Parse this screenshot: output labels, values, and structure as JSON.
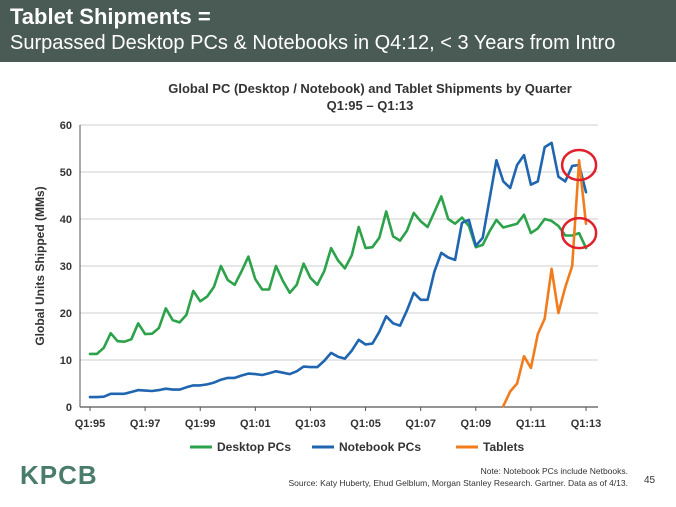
{
  "header": {
    "title": "Tablet Shipments =",
    "subtitle": "Surpassed Desktop PCs & Notebooks in Q4:12, < 3 Years from Intro"
  },
  "footer": {
    "logo": "KPCB",
    "note": "Note: Notebook PCs include Netbooks.",
    "source": "Source: Katy Huberty, Ehud Gelblum, Morgan Stanley Research. Gartner. Data as of 4/13.",
    "page_number": "45"
  },
  "colors": {
    "header_bg": "#4a5a54",
    "desktop": "#2ca24a",
    "notebook": "#1f65b0",
    "tablets": "#f07c1d",
    "highlight_circle": "#e0202a"
  },
  "chart_data": {
    "type": "line",
    "title": "Global PC (Desktop / Notebook) and Tablet Shipments by Quarter",
    "subtitle": "Q1:95 – Q1:13",
    "xlabel": "",
    "ylabel": "Global Units Shipped (MMs)",
    "ylim": [
      0,
      60
    ],
    "yticks": [
      0,
      10,
      20,
      30,
      40,
      50,
      60
    ],
    "xticks": [
      "Q1:95",
      "Q1:97",
      "Q1:99",
      "Q1:01",
      "Q1:03",
      "Q1:05",
      "Q1:07",
      "Q1:09",
      "Q1:11",
      "Q1:13"
    ],
    "grid": true,
    "legend": "bottom",
    "series": [
      {
        "name": "Desktop PCs",
        "values": [
          11.3,
          11.3,
          12.6,
          15.7,
          14.0,
          13.9,
          14.4,
          17.8,
          15.5,
          15.6,
          16.8,
          21.0,
          18.5,
          18.0,
          19.6,
          24.7,
          22.5,
          23.5,
          25.6,
          30.0,
          27.0,
          26.0,
          28.9,
          32.0,
          27.2,
          25.0,
          25.0,
          30.0,
          26.8,
          24.3,
          26.0,
          30.5,
          27.5,
          26.0,
          28.9,
          33.8,
          31.2,
          29.5,
          32.3,
          38.3,
          33.8,
          34.0,
          36.0,
          41.6,
          36.3,
          35.4,
          37.5,
          41.3,
          39.5,
          38.3,
          41.5,
          44.8,
          40.0,
          39.0,
          40.3,
          38.5,
          34.0,
          34.5,
          37.4,
          39.8,
          38.2,
          38.6,
          39.0,
          40.9,
          37.0,
          38.0,
          40.0,
          39.6,
          38.5,
          36.5,
          36.5,
          37.0,
          33.8
        ]
      },
      {
        "name": "Notebook PCs",
        "values": [
          2.1,
          2.1,
          2.2,
          2.8,
          2.8,
          2.8,
          3.2,
          3.6,
          3.5,
          3.4,
          3.6,
          3.9,
          3.7,
          3.7,
          4.2,
          4.6,
          4.6,
          4.8,
          5.2,
          5.8,
          6.2,
          6.2,
          6.7,
          7.1,
          7.0,
          6.8,
          7.2,
          7.6,
          7.3,
          7.0,
          7.6,
          8.6,
          8.5,
          8.5,
          9.8,
          11.5,
          10.7,
          10.3,
          12.0,
          14.3,
          13.3,
          13.5,
          16.0,
          19.3,
          17.8,
          17.3,
          20.5,
          24.3,
          22.8,
          22.8,
          28.8,
          32.8,
          31.8,
          31.3,
          39.2,
          39.8,
          34.3,
          36.0,
          44.3,
          52.5,
          48.0,
          46.6,
          51.5,
          53.6,
          47.3,
          48.0,
          55.3,
          56.2,
          49.0,
          48.0,
          51.3,
          51.5,
          45.7
        ]
      },
      {
        "name": "Tablets",
        "values": [
          null,
          null,
          null,
          null,
          null,
          null,
          null,
          null,
          null,
          null,
          null,
          null,
          null,
          null,
          null,
          null,
          null,
          null,
          null,
          null,
          null,
          null,
          null,
          null,
          null,
          null,
          null,
          null,
          null,
          null,
          null,
          null,
          null,
          null,
          null,
          null,
          null,
          null,
          null,
          null,
          null,
          null,
          null,
          null,
          null,
          null,
          null,
          null,
          null,
          null,
          null,
          null,
          null,
          null,
          null,
          null,
          null,
          null,
          null,
          null,
          0.2,
          3.3,
          5.0,
          10.8,
          8.3,
          15.5,
          18.8,
          29.4,
          20.0,
          25.5,
          30.0,
          52.5,
          39.0
        ]
      }
    ],
    "highlights": [
      {
        "series": "Notebook PCs",
        "quarter": "Q4:12"
      },
      {
        "series": "Desktop PCs",
        "quarter": "Q4:12"
      }
    ]
  }
}
